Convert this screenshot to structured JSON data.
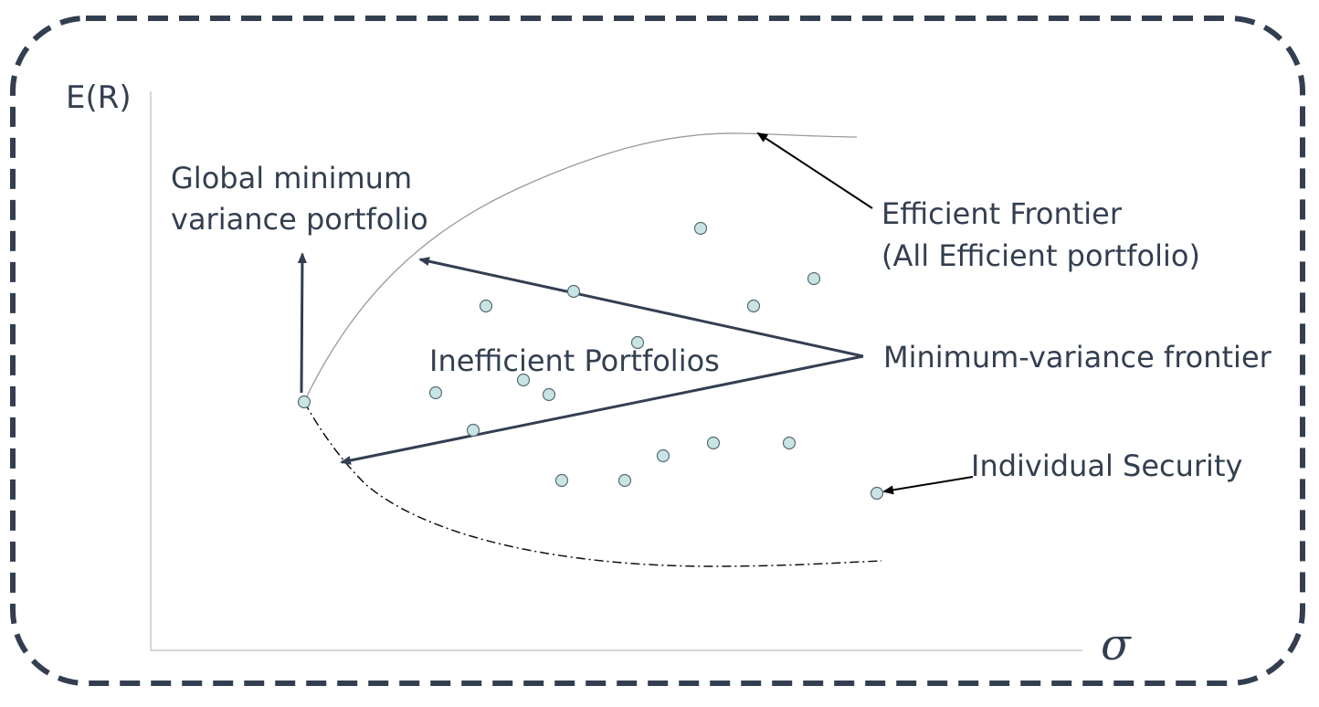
{
  "labels": {
    "y_axis": "E(R)",
    "x_axis": "σ",
    "global_min_line1": "Global minimum",
    "global_min_line2": "variance portfolio",
    "efficient_frontier_line1": "Efficient Frontier",
    "efficient_frontier_line2": "(All Efficient portfolio)",
    "inefficient": "Inefficient Portfolios",
    "min_variance_frontier": "Minimum-variance frontier",
    "individual_security": "Individual Security"
  },
  "colors": {
    "border": "#333f50",
    "text": "#333f50",
    "arrow": "#333f50",
    "point_fill": "#c9e4e4",
    "point_stroke": "#596b73",
    "frontier": "#9a9a9a",
    "axis": "#c8c8c8"
  }
}
